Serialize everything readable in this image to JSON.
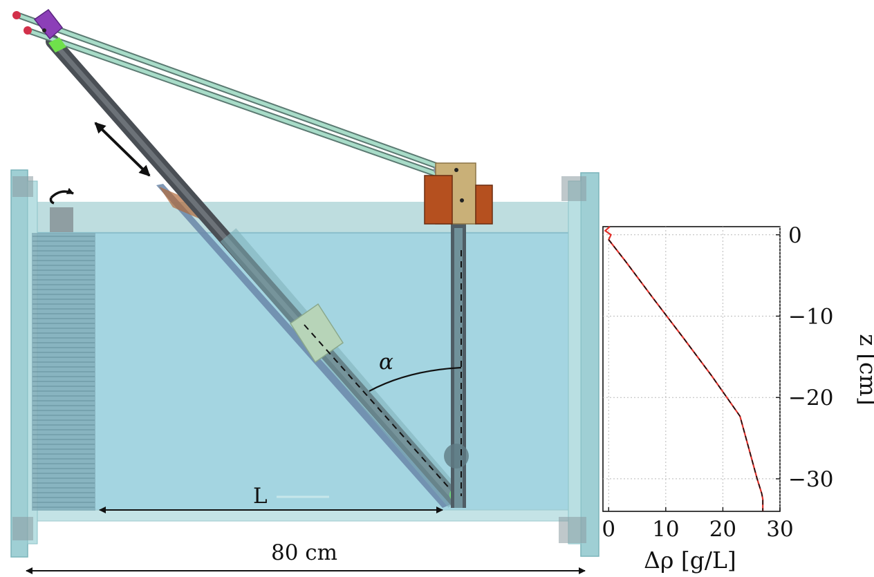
{
  "diagram": {
    "labels": {
      "angle": "α",
      "length": "L",
      "width": "80 cm"
    }
  },
  "chart_data": {
    "type": "line",
    "xlabel": "Δρ [g/L]",
    "ylabel": "z [cm]",
    "xlim": [
      -1,
      30
    ],
    "ylim": [
      -34,
      1
    ],
    "xticks": [
      0,
      10,
      20,
      30
    ],
    "yticks": [
      0,
      -10,
      -20,
      -30
    ],
    "grid": true,
    "series": [
      {
        "style": "measured",
        "color": "#e0302a",
        "x": [
          0.2,
          -0.6,
          0.4,
          0.0,
          1.0,
          3.0,
          8.0,
          13.0,
          18.0,
          23.0,
          26.0,
          26.8,
          27.0,
          27.0
        ],
        "y": [
          1.0,
          0.5,
          0.0,
          -0.6,
          -1.5,
          -3.3,
          -8.0,
          -12.6,
          -17.3,
          -22.3,
          -30.0,
          -31.8,
          -32.5,
          -34.0
        ]
      },
      {
        "style": "target",
        "color": "#111111",
        "x": [
          0.0,
          1.0,
          3.0,
          8.0,
          13.0,
          18.0,
          23.0,
          26.0,
          26.8,
          27.0,
          27.0
        ],
        "y": [
          -0.6,
          -1.5,
          -3.3,
          -8.0,
          -12.6,
          -17.3,
          -22.3,
          -30.0,
          -31.8,
          -32.5,
          -34.0
        ]
      }
    ]
  }
}
